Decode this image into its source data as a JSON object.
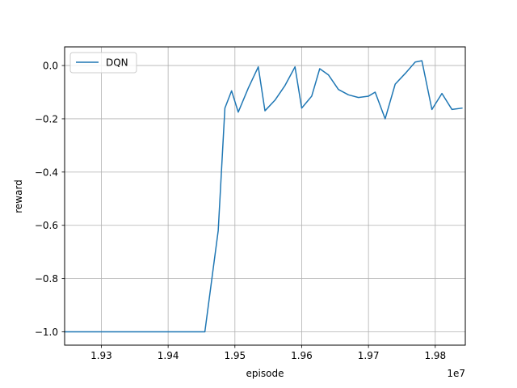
{
  "chart_data": {
    "type": "line",
    "title": "",
    "xlabel": "episode",
    "ylabel": "reward",
    "x_offset_label": "1e7",
    "xlim": [
      19245000,
      19845000
    ],
    "ylim": [
      -1.05,
      0.07
    ],
    "xticks": [
      19300000,
      19400000,
      19500000,
      19600000,
      19700000,
      19800000
    ],
    "xtick_labels": [
      "1.93",
      "1.94",
      "1.95",
      "1.96",
      "1.97",
      "1.98"
    ],
    "yticks": [
      0.0,
      -0.2,
      -0.4,
      -0.6,
      -0.8,
      -1.0
    ],
    "ytick_labels": [
      "0.0",
      "−0.2",
      "−0.4",
      "−0.6",
      "−0.8",
      "−1.0"
    ],
    "grid": true,
    "legend_position": "top-left",
    "series": [
      {
        "name": "DQN",
        "color": "#1f77b4",
        "x": [
          19245000,
          19455000,
          19475000,
          19485000,
          19495000,
          19505000,
          19520000,
          19535000,
          19545000,
          19560000,
          19575000,
          19590000,
          19600000,
          19615000,
          19627000,
          19640000,
          19655000,
          19670000,
          19685000,
          19700000,
          19710000,
          19725000,
          19740000,
          19755000,
          19770000,
          19780000,
          19795000,
          19810000,
          19825000,
          19840000
        ],
        "y": [
          -1.0,
          -1.0,
          -0.62,
          -0.16,
          -0.095,
          -0.175,
          -0.085,
          -0.005,
          -0.17,
          -0.13,
          -0.075,
          -0.005,
          -0.16,
          -0.115,
          -0.012,
          -0.035,
          -0.09,
          -0.11,
          -0.12,
          -0.115,
          -0.1,
          -0.2,
          -0.07,
          -0.03,
          0.013,
          0.018,
          -0.165,
          -0.105,
          -0.165,
          -0.16
        ]
      }
    ]
  }
}
